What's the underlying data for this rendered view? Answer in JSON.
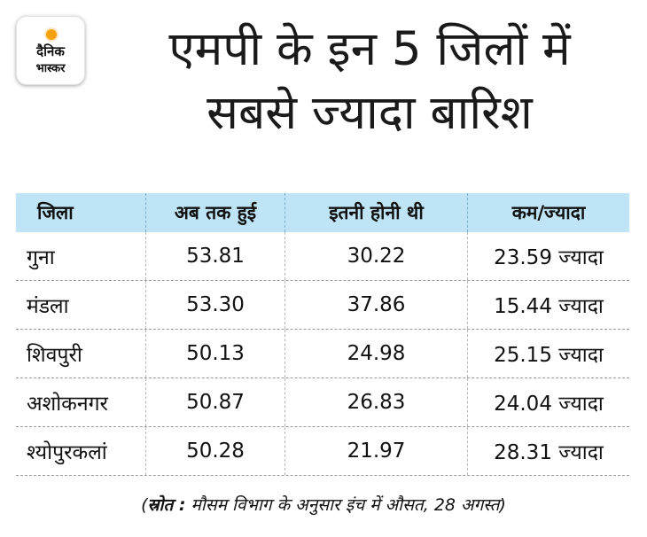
{
  "logo": {
    "line1": "दैनिक",
    "line2": "भास्कर"
  },
  "title": {
    "line1": "एमपी के इन 5 जिलों में",
    "line2": "सबसे ज्यादा बारिश"
  },
  "table": {
    "headers": [
      "जिला",
      "अब तक हुई",
      "इतनी होनी थी",
      "कम/ज्यादा"
    ],
    "rows": [
      [
        "गुना",
        "53.81",
        "30.22",
        "23.59 ज्यादा"
      ],
      [
        "मंडला",
        "53.30",
        "37.86",
        "15.44 ज्यादा"
      ],
      [
        "शिवपुरी",
        "50.13",
        "24.98",
        "25.15 ज्यादा"
      ],
      [
        "अशोकनगर",
        "50.87",
        "26.83",
        "24.04 ज्यादा"
      ],
      [
        "श्योपुरकलां",
        "50.28",
        "21.97",
        "28.31 ज्यादा"
      ]
    ]
  },
  "source": {
    "open": "(",
    "label": "स्रोत :",
    "text": " मौसम विभाग के अनुसार इंच में औसत, 28 अगस्त)"
  },
  "colors": {
    "header_bg": "#bfe4f5",
    "logo_accent": "#f5a10c"
  }
}
